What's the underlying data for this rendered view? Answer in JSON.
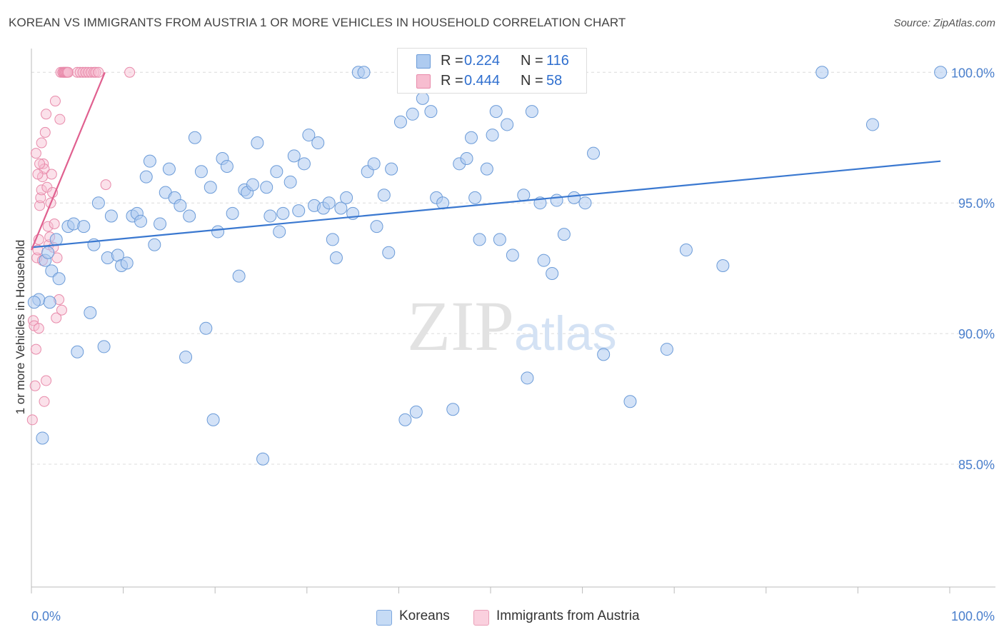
{
  "title": "KOREAN VS IMMIGRANTS FROM AUSTRIA 1 OR MORE VEHICLES IN HOUSEHOLD CORRELATION CHART",
  "source": "Source: ZipAtlas.com",
  "watermark": {
    "zip": "ZIP",
    "atlas": "atlas"
  },
  "stats": {
    "r_label": "R =",
    "n_label": "N =",
    "rows": [
      {
        "r": "0.224",
        "n": "116",
        "fill": "#aecbf0",
        "stroke": "#6b9bd8"
      },
      {
        "r": "0.444",
        "n": "58",
        "fill": "#f7bdd0",
        "stroke": "#e88aaa"
      }
    ]
  },
  "legend": {
    "items": [
      {
        "label": "Koreans",
        "fill": "#c6dbf5",
        "stroke": "#7ea8df"
      },
      {
        "label": "Immigrants from Austria",
        "fill": "#fad0de",
        "stroke": "#eaa0b8"
      }
    ]
  },
  "chart_data": {
    "type": "scatter",
    "title": "KOREAN VS IMMIGRANTS FROM AUSTRIA 1 OR MORE VEHICLES IN HOUSEHOLD CORRELATION CHART",
    "xlabel": "",
    "ylabel": "1 or more Vehicles in Household",
    "xlim": [
      0,
      100
    ],
    "ylim": [
      80.3,
      100.8
    ],
    "x_tick_labels": [
      "0.0%",
      "100.0%"
    ],
    "y_ticks": [
      85,
      90,
      95,
      100
    ],
    "y_tick_labels": [
      "85.0%",
      "90.0%",
      "95.0%",
      "100.0%"
    ],
    "grid": true,
    "colors": {
      "koreans": "#3a78d0",
      "austria": "#e0608f",
      "axis_label": "#4a7fcc"
    },
    "series": [
      {
        "name": "Koreans",
        "r": 0.224,
        "n": 116,
        "trend": {
          "x": [
            0,
            99
          ],
          "y": [
            93.3,
            96.6
          ]
        },
        "points": [
          [
            0.8,
            91.3
          ],
          [
            1.2,
            86.0
          ],
          [
            1.5,
            92.8
          ],
          [
            1.8,
            93.1
          ],
          [
            2.2,
            92.4
          ],
          [
            2.7,
            93.6
          ],
          [
            3.0,
            92.1
          ],
          [
            4.0,
            94.1
          ],
          [
            4.6,
            94.2
          ],
          [
            5.0,
            89.3
          ],
          [
            5.7,
            94.1
          ],
          [
            6.4,
            90.8
          ],
          [
            6.8,
            93.4
          ],
          [
            7.3,
            95.0
          ],
          [
            7.9,
            89.5
          ],
          [
            8.3,
            92.9
          ],
          [
            8.7,
            94.5
          ],
          [
            9.4,
            93.0
          ],
          [
            9.8,
            92.6
          ],
          [
            10.4,
            92.7
          ],
          [
            11.0,
            94.5
          ],
          [
            11.5,
            94.6
          ],
          [
            11.9,
            94.3
          ],
          [
            12.5,
            96.0
          ],
          [
            12.9,
            96.6
          ],
          [
            13.4,
            93.4
          ],
          [
            14.0,
            94.2
          ],
          [
            14.6,
            95.4
          ],
          [
            15.0,
            96.3
          ],
          [
            15.6,
            95.2
          ],
          [
            16.2,
            94.9
          ],
          [
            16.8,
            89.1
          ],
          [
            17.2,
            94.5
          ],
          [
            17.8,
            97.5
          ],
          [
            18.5,
            96.2
          ],
          [
            19.0,
            90.2
          ],
          [
            19.5,
            95.6
          ],
          [
            19.8,
            86.7
          ],
          [
            20.3,
            93.9
          ],
          [
            20.8,
            96.7
          ],
          [
            21.3,
            96.4
          ],
          [
            21.9,
            94.6
          ],
          [
            22.6,
            92.2
          ],
          [
            23.2,
            95.5
          ],
          [
            23.5,
            95.4
          ],
          [
            24.1,
            95.7
          ],
          [
            24.6,
            97.3
          ],
          [
            25.2,
            85.2
          ],
          [
            25.6,
            95.6
          ],
          [
            26.0,
            94.5
          ],
          [
            26.7,
            96.2
          ],
          [
            27.0,
            93.9
          ],
          [
            27.4,
            94.6
          ],
          [
            28.2,
            95.8
          ],
          [
            28.6,
            96.8
          ],
          [
            29.1,
            94.7
          ],
          [
            29.7,
            96.5
          ],
          [
            30.2,
            97.6
          ],
          [
            30.8,
            94.9
          ],
          [
            31.2,
            97.3
          ],
          [
            31.8,
            94.8
          ],
          [
            32.4,
            95.0
          ],
          [
            32.8,
            93.6
          ],
          [
            33.2,
            92.9
          ],
          [
            33.7,
            94.8
          ],
          [
            34.3,
            95.2
          ],
          [
            35.0,
            94.6
          ],
          [
            35.6,
            100.0
          ],
          [
            36.2,
            100.0
          ],
          [
            36.6,
            96.2
          ],
          [
            37.3,
            96.5
          ],
          [
            37.6,
            94.1
          ],
          [
            38.4,
            95.3
          ],
          [
            38.9,
            93.1
          ],
          [
            39.2,
            96.3
          ],
          [
            40.2,
            98.1
          ],
          [
            40.7,
            86.7
          ],
          [
            41.5,
            98.4
          ],
          [
            41.9,
            87.0
          ],
          [
            42.6,
            99.0
          ],
          [
            43.5,
            98.5
          ],
          [
            44.1,
            95.2
          ],
          [
            44.8,
            95.0
          ],
          [
            45.9,
            87.1
          ],
          [
            46.6,
            96.5
          ],
          [
            47.4,
            96.7
          ],
          [
            47.9,
            97.5
          ],
          [
            48.3,
            95.2
          ],
          [
            48.8,
            93.6
          ],
          [
            49.6,
            96.3
          ],
          [
            50.2,
            97.6
          ],
          [
            50.6,
            98.5
          ],
          [
            51.0,
            93.6
          ],
          [
            51.8,
            98.0
          ],
          [
            52.4,
            93.0
          ],
          [
            53.6,
            95.3
          ],
          [
            54.0,
            88.3
          ],
          [
            54.5,
            98.5
          ],
          [
            55.4,
            95.0
          ],
          [
            55.8,
            92.8
          ],
          [
            56.7,
            92.3
          ],
          [
            57.2,
            95.1
          ],
          [
            58.0,
            93.8
          ],
          [
            59.1,
            95.2
          ],
          [
            60.3,
            95.0
          ],
          [
            61.2,
            96.9
          ],
          [
            62.3,
            89.2
          ],
          [
            65.2,
            87.4
          ],
          [
            69.2,
            89.4
          ],
          [
            71.3,
            93.2
          ],
          [
            75.3,
            92.6
          ],
          [
            86.1,
            100.0
          ],
          [
            91.6,
            98.0
          ],
          [
            99.0,
            100.0
          ],
          [
            0.3,
            91.2
          ],
          [
            2.0,
            91.2
          ]
        ]
      },
      {
        "name": "Immigrants from Austria",
        "r": 0.444,
        "n": 58,
        "trend": {
          "x": [
            0,
            8
          ],
          "y": [
            93.2,
            100.0
          ]
        },
        "points": [
          [
            0.1,
            86.7
          ],
          [
            0.2,
            90.5
          ],
          [
            0.3,
            90.3
          ],
          [
            0.4,
            88.0
          ],
          [
            0.5,
            89.4
          ],
          [
            0.6,
            92.9
          ],
          [
            0.7,
            93.2
          ],
          [
            0.8,
            93.6
          ],
          [
            0.9,
            94.9
          ],
          [
            1.0,
            95.2
          ],
          [
            1.1,
            95.5
          ],
          [
            1.2,
            96.0
          ],
          [
            1.3,
            96.5
          ],
          [
            1.4,
            96.3
          ],
          [
            1.5,
            97.7
          ],
          [
            1.6,
            98.4
          ],
          [
            1.7,
            95.6
          ],
          [
            1.8,
            94.1
          ],
          [
            1.9,
            93.4
          ],
          [
            2.0,
            93.7
          ],
          [
            2.1,
            95.0
          ],
          [
            2.2,
            96.1
          ],
          [
            2.3,
            95.4
          ],
          [
            2.4,
            93.3
          ],
          [
            2.5,
            94.2
          ],
          [
            2.6,
            98.9
          ],
          [
            2.7,
            90.6
          ],
          [
            2.8,
            92.9
          ],
          [
            3.0,
            91.3
          ],
          [
            3.3,
            90.9
          ],
          [
            3.1,
            98.2
          ],
          [
            3.2,
            100.0
          ],
          [
            3.4,
            100.0
          ],
          [
            3.5,
            100.0
          ],
          [
            3.6,
            100.0
          ],
          [
            3.7,
            100.0
          ],
          [
            3.8,
            100.0
          ],
          [
            3.9,
            100.0
          ],
          [
            4.0,
            100.0
          ],
          [
            5.0,
            100.0
          ],
          [
            5.3,
            100.0
          ],
          [
            5.6,
            100.0
          ],
          [
            5.9,
            100.0
          ],
          [
            6.2,
            100.0
          ],
          [
            6.5,
            100.0
          ],
          [
            6.8,
            100.0
          ],
          [
            7.0,
            100.0
          ],
          [
            7.3,
            100.0
          ],
          [
            8.1,
            95.7
          ],
          [
            10.7,
            100.0
          ],
          [
            0.5,
            96.9
          ],
          [
            0.7,
            96.1
          ],
          [
            0.9,
            96.5
          ],
          [
            1.1,
            97.3
          ],
          [
            1.4,
            87.4
          ],
          [
            1.6,
            88.2
          ],
          [
            0.8,
            90.2
          ],
          [
            1.2,
            92.8
          ]
        ]
      }
    ]
  }
}
